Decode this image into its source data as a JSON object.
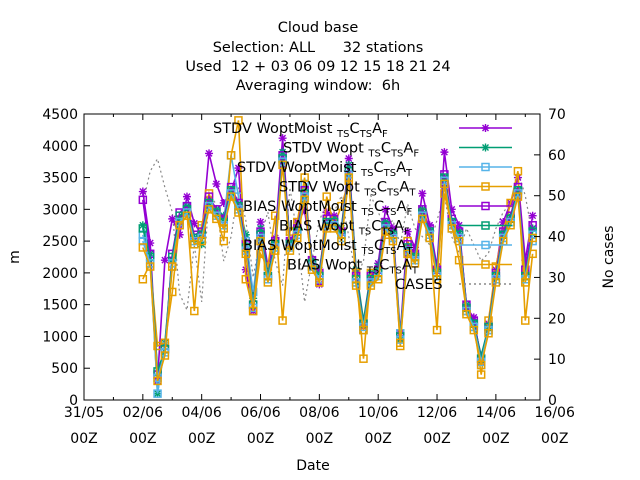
{
  "chart_data": {
    "type": "line",
    "title_lines": [
      "Cloud base",
      "Selection: ALL      32 stations",
      "Used  12 + 03 06 09 12 15 18 21 24",
      "Averaging window:  6h"
    ],
    "xlabel": "Date",
    "ylabel": "m",
    "y2label": "No cases",
    "xlim": [
      0,
      15.5
    ],
    "ylim": [
      0,
      4500
    ],
    "y2lim": [
      0,
      70
    ],
    "x_ticks": [
      {
        "line1": "31/05",
        "line2": "00Z"
      },
      {
        "line1": "02/06",
        "line2": "00Z"
      },
      {
        "line1": "04/06",
        "line2": "00Z"
      },
      {
        "line1": "06/06",
        "line2": "00Z"
      },
      {
        "line1": "08/06",
        "line2": "00Z"
      },
      {
        "line1": "10/06",
        "line2": "00Z"
      },
      {
        "line1": "12/06",
        "line2": "00Z"
      },
      {
        "line1": "14/06",
        "line2": "00Z"
      },
      {
        "line1": "16/06",
        "line2": "00Z"
      }
    ],
    "y_ticks": [
      "0",
      "500",
      "1000",
      "1500",
      "2000",
      "2500",
      "3000",
      "3500",
      "4000",
      "4500"
    ],
    "y2_ticks": [
      "0",
      "10",
      "20",
      "30",
      "40",
      "50",
      "60",
      "70"
    ],
    "x": [
      2.0,
      2.25,
      2.5,
      2.75,
      3.0,
      3.25,
      3.5,
      3.75,
      4.0,
      4.25,
      4.5,
      4.75,
      5.0,
      5.25,
      5.5,
      5.75,
      6.0,
      6.25,
      6.5,
      6.75,
      7.0,
      7.25,
      7.5,
      7.75,
      8.0,
      8.25,
      8.5,
      8.75,
      9.0,
      9.25,
      9.5,
      9.75,
      10.0,
      10.25,
      10.5,
      10.75,
      11.0,
      11.25,
      11.5,
      11.75,
      12.0,
      12.25,
      12.5,
      12.75,
      13.0,
      13.25,
      13.5,
      13.75,
      14.0,
      14.25,
      14.5,
      14.75,
      15.0,
      15.25
    ],
    "series": [
      {
        "name": "STDV WoptMoist",
        "sub": "TSCTSAF",
        "color": "#9400d3",
        "marker": "asterisk",
        "dash": "",
        "values": [
          3280,
          2470,
          300,
          2200,
          2850,
          2600,
          3200,
          2780,
          2600,
          3880,
          3400,
          3100,
          3280,
          3650,
          2050,
          1400,
          2800,
          2100,
          2550,
          4120,
          2450,
          2800,
          2980,
          2200,
          1820,
          2950,
          2900,
          2650,
          3800,
          2000,
          1150,
          1900,
          2150,
          3000,
          2700,
          1050,
          2650,
          2400,
          3250,
          2750,
          2100,
          3900,
          3000,
          2750,
          1450,
          1300,
          600,
          1200,
          2050,
          2800,
          3100,
          3500,
          2200,
          2900
        ]
      },
      {
        "name": "STDV Wopt",
        "sub": "TSCTSAF",
        "color": "#009e73",
        "marker": "asterisk",
        "dash": "",
        "values": [
          2750,
          2300,
          100,
          900,
          2200,
          2850,
          3050,
          2550,
          2450,
          3150,
          3000,
          2900,
          3300,
          3100,
          2600,
          1600,
          2700,
          2000,
          2450,
          3900,
          2500,
          2700,
          3300,
          2200,
          2050,
          2800,
          2850,
          2700,
          3700,
          2050,
          1250,
          2000,
          2100,
          2800,
          2650,
          950,
          2400,
          2300,
          3000,
          2650,
          2050,
          3500,
          2800,
          2650,
          1500,
          1200,
          700,
          1150,
          1950,
          2600,
          2900,
          3300,
          2000,
          2700
        ]
      },
      {
        "name": "STDV WoptMoist",
        "sub": "TSCTSAT",
        "color": "#56b4e9",
        "marker": "box",
        "dash": "",
        "values": [
          2600,
          2200,
          100,
          850,
          2100,
          2750,
          3050,
          2450,
          2700,
          3100,
          2950,
          2800,
          3850,
          3200,
          2500,
          1700,
          2600,
          1900,
          2400,
          3800,
          2450,
          2650,
          3400,
          2100,
          1950,
          2750,
          2800,
          2600,
          3600,
          1850,
          1100,
          1900,
          2000,
          2700,
          2550,
          1050,
          2300,
          2200,
          2900,
          2550,
          1950,
          3400,
          2700,
          2550,
          1450,
          1150,
          550,
          1100,
          1900,
          2550,
          2800,
          3300,
          1950,
          2500
        ]
      },
      {
        "name": "STDV Wopt",
        "sub": "TSCTSAT",
        "color": "#e69f00",
        "marker": "box",
        "dash": "",
        "values": [
          1900,
          2150,
          850,
          900,
          1700,
          2800,
          2950,
          1400,
          2750,
          3250,
          2900,
          2500,
          3850,
          4400,
          1900,
          1400,
          2300,
          2100,
          2900,
          1250,
          2650,
          2800,
          3500,
          2100,
          1850,
          3200,
          2750,
          3050,
          3450,
          2000,
          650,
          2000,
          1900,
          2600,
          2600,
          850,
          2500,
          2250,
          2950,
          2600,
          1100,
          3250,
          2750,
          2200,
          1400,
          1200,
          400,
          1250,
          2100,
          2650,
          3100,
          3600,
          1250,
          2300
        ]
      },
      {
        "name": "BIAS WoptMoist",
        "sub": "TSCTSAF",
        "color": "#9400d3",
        "marker": "box",
        "dash": "",
        "values": [
          3150,
          2300,
          400,
          800,
          2300,
          2950,
          3050,
          2600,
          2650,
          3200,
          3000,
          2850,
          3350,
          3100,
          2450,
          1500,
          2650,
          1950,
          2500,
          3850,
          2500,
          2700,
          3300,
          2200,
          2000,
          2850,
          2850,
          2650,
          3650,
          1950,
          1200,
          1950,
          2050,
          2800,
          2650,
          1000,
          2450,
          2300,
          3000,
          2700,
          2050,
          3550,
          2850,
          2650,
          1500,
          1250,
          650,
          1150,
          2000,
          2650,
          2900,
          3350,
          2050,
          2750
        ]
      },
      {
        "name": "BIAS Wopt",
        "sub": "TSCTSAF",
        "color": "#009e73",
        "marker": "box",
        "dash": "",
        "values": [
          2700,
          2250,
          450,
          800,
          2250,
          2900,
          3000,
          2550,
          2600,
          3100,
          2950,
          2800,
          3300,
          3050,
          2400,
          1500,
          2600,
          1950,
          2450,
          3800,
          2450,
          2650,
          3250,
          2150,
          1950,
          2800,
          2800,
          2600,
          3600,
          1900,
          1200,
          1900,
          2000,
          2750,
          2600,
          1000,
          2400,
          2250,
          2950,
          2650,
          2000,
          3500,
          2800,
          2600,
          1450,
          1200,
          650,
          1150,
          1950,
          2600,
          2850,
          3300,
          1950,
          2650
        ]
      },
      {
        "name": "BIAS WoptMoist",
        "sub": "TSCTSAT",
        "color": "#56b4e9",
        "marker": "box",
        "dash": "",
        "values": [
          2500,
          2150,
          350,
          750,
          2150,
          2800,
          2950,
          2500,
          2550,
          3050,
          2900,
          2750,
          3250,
          3000,
          2350,
          1450,
          2550,
          1900,
          2400,
          3750,
          2400,
          2600,
          3200,
          2100,
          1900,
          2750,
          2750,
          2550,
          3550,
          1850,
          1150,
          1850,
          1950,
          2700,
          2550,
          950,
          2350,
          2200,
          2900,
          2600,
          1950,
          3450,
          2750,
          2550,
          1400,
          1150,
          600,
          1100,
          1900,
          2550,
          2800,
          3250,
          1900,
          2600
        ]
      },
      {
        "name": "BIAS Wopt",
        "sub": "TSCTSAT",
        "color": "#e69f00",
        "marker": "box",
        "dash": "",
        "values": [
          2400,
          2100,
          300,
          700,
          2100,
          2750,
          2900,
          2450,
          2500,
          3000,
          2850,
          2700,
          3200,
          2950,
          2300,
          1400,
          2500,
          1850,
          2350,
          3700,
          2350,
          2550,
          3150,
          2050,
          1850,
          2700,
          2700,
          2500,
          3500,
          1800,
          1100,
          1800,
          1900,
          2650,
          2500,
          900,
          2300,
          2150,
          2850,
          2550,
          1900,
          3400,
          2700,
          2500,
          1350,
          1100,
          550,
          1050,
          1850,
          2500,
          2750,
          3200,
          1850,
          2550
        ]
      },
      {
        "name": "CASES",
        "sub": "",
        "color": "#888888",
        "marker": "none",
        "dash": "2,3",
        "axis": "y2",
        "values": [
          48,
          56,
          59,
          52,
          46,
          26,
          22,
          38,
          24,
          50,
          48,
          34,
          40,
          52,
          44,
          30,
          40,
          46,
          34,
          28,
          52,
          40,
          24,
          34,
          44,
          48,
          46,
          50,
          40,
          30,
          34,
          50,
          46,
          42,
          44,
          38,
          48,
          42,
          40,
          38,
          44,
          50,
          40,
          36,
          42,
          38,
          34,
          36,
          42,
          46,
          48,
          56,
          50,
          40
        ]
      }
    ]
  }
}
